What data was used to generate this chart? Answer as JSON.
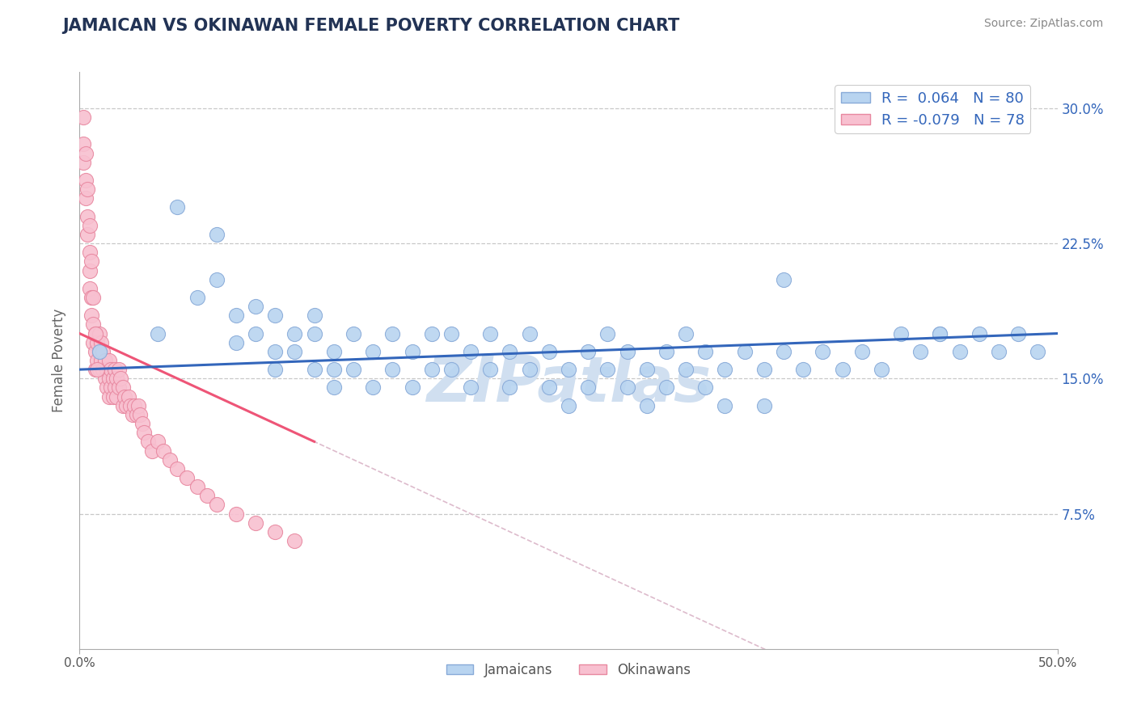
{
  "title": "JAMAICAN VS OKINAWAN FEMALE POVERTY CORRELATION CHART",
  "source": "Source: ZipAtlas.com",
  "ylabel": "Female Poverty",
  "xlim": [
    0.0,
    0.5
  ],
  "ylim": [
    0.0,
    0.32
  ],
  "ytick_labels": [
    "7.5%",
    "15.0%",
    "22.5%",
    "30.0%"
  ],
  "ytick_values": [
    0.075,
    0.15,
    0.225,
    0.3
  ],
  "grid_color": "#c8c8c8",
  "background_color": "#ffffff",
  "jamaican_color": "#b8d4f0",
  "jamaican_edge_color": "#88aad8",
  "okinawan_color": "#f8c0d0",
  "okinawan_edge_color": "#e888a0",
  "jamaican_line_color": "#3366bb",
  "okinawan_line_color": "#ee5577",
  "okinawan_dashed_color": "#ddbbcc",
  "watermark_color": "#d0dff0",
  "R_jamaican": 0.064,
  "N_jamaican": 80,
  "R_okinawan": -0.079,
  "N_okinawan": 78,
  "legend_label_jamaican": "Jamaicans",
  "legend_label_okinawan": "Okinawans",
  "jamaican_x": [
    0.01,
    0.04,
    0.05,
    0.06,
    0.07,
    0.07,
    0.08,
    0.08,
    0.09,
    0.09,
    0.1,
    0.1,
    0.1,
    0.11,
    0.11,
    0.12,
    0.12,
    0.12,
    0.13,
    0.13,
    0.13,
    0.14,
    0.14,
    0.15,
    0.15,
    0.16,
    0.16,
    0.17,
    0.17,
    0.18,
    0.18,
    0.19,
    0.19,
    0.2,
    0.2,
    0.21,
    0.21,
    0.22,
    0.22,
    0.23,
    0.23,
    0.24,
    0.24,
    0.25,
    0.25,
    0.26,
    0.26,
    0.27,
    0.27,
    0.28,
    0.28,
    0.29,
    0.29,
    0.3,
    0.3,
    0.31,
    0.31,
    0.32,
    0.32,
    0.33,
    0.33,
    0.34,
    0.35,
    0.35,
    0.36,
    0.37,
    0.38,
    0.39,
    0.4,
    0.41,
    0.42,
    0.43,
    0.44,
    0.45,
    0.46,
    0.47,
    0.48,
    0.49,
    0.36,
    0.44
  ],
  "jamaican_y": [
    0.165,
    0.175,
    0.245,
    0.195,
    0.23,
    0.205,
    0.185,
    0.17,
    0.19,
    0.175,
    0.185,
    0.165,
    0.155,
    0.175,
    0.165,
    0.185,
    0.175,
    0.155,
    0.165,
    0.155,
    0.145,
    0.175,
    0.155,
    0.165,
    0.145,
    0.175,
    0.155,
    0.165,
    0.145,
    0.175,
    0.155,
    0.175,
    0.155,
    0.165,
    0.145,
    0.175,
    0.155,
    0.165,
    0.145,
    0.175,
    0.155,
    0.165,
    0.145,
    0.155,
    0.135,
    0.165,
    0.145,
    0.175,
    0.155,
    0.165,
    0.145,
    0.155,
    0.135,
    0.165,
    0.145,
    0.175,
    0.155,
    0.165,
    0.145,
    0.155,
    0.135,
    0.165,
    0.155,
    0.135,
    0.165,
    0.155,
    0.165,
    0.155,
    0.165,
    0.155,
    0.175,
    0.165,
    0.175,
    0.165,
    0.175,
    0.165,
    0.175,
    0.165,
    0.205,
    0.175
  ],
  "okinawan_x": [
    0.002,
    0.002,
    0.003,
    0.003,
    0.004,
    0.004,
    0.005,
    0.005,
    0.005,
    0.006,
    0.006,
    0.007,
    0.007,
    0.008,
    0.008,
    0.008,
    0.009,
    0.009,
    0.01,
    0.01,
    0.01,
    0.011,
    0.011,
    0.012,
    0.012,
    0.013,
    0.013,
    0.014,
    0.014,
    0.015,
    0.015,
    0.015,
    0.016,
    0.016,
    0.017,
    0.017,
    0.018,
    0.018,
    0.019,
    0.019,
    0.02,
    0.02,
    0.021,
    0.022,
    0.022,
    0.023,
    0.024,
    0.025,
    0.026,
    0.027,
    0.028,
    0.029,
    0.03,
    0.031,
    0.032,
    0.033,
    0.035,
    0.037,
    0.04,
    0.043,
    0.046,
    0.05,
    0.055,
    0.06,
    0.065,
    0.07,
    0.08,
    0.09,
    0.1,
    0.11,
    0.002,
    0.003,
    0.004,
    0.005,
    0.006,
    0.007,
    0.008,
    0.009
  ],
  "okinawan_y": [
    0.28,
    0.27,
    0.26,
    0.25,
    0.24,
    0.23,
    0.22,
    0.21,
    0.2,
    0.195,
    0.185,
    0.18,
    0.17,
    0.175,
    0.165,
    0.155,
    0.17,
    0.16,
    0.175,
    0.165,
    0.155,
    0.17,
    0.16,
    0.165,
    0.155,
    0.16,
    0.15,
    0.155,
    0.145,
    0.16,
    0.15,
    0.14,
    0.155,
    0.145,
    0.15,
    0.14,
    0.155,
    0.145,
    0.15,
    0.14,
    0.155,
    0.145,
    0.15,
    0.145,
    0.135,
    0.14,
    0.135,
    0.14,
    0.135,
    0.13,
    0.135,
    0.13,
    0.135,
    0.13,
    0.125,
    0.12,
    0.115,
    0.11,
    0.115,
    0.11,
    0.105,
    0.1,
    0.095,
    0.09,
    0.085,
    0.08,
    0.075,
    0.07,
    0.065,
    0.06,
    0.295,
    0.275,
    0.255,
    0.235,
    0.215,
    0.195,
    0.175,
    0.155
  ]
}
